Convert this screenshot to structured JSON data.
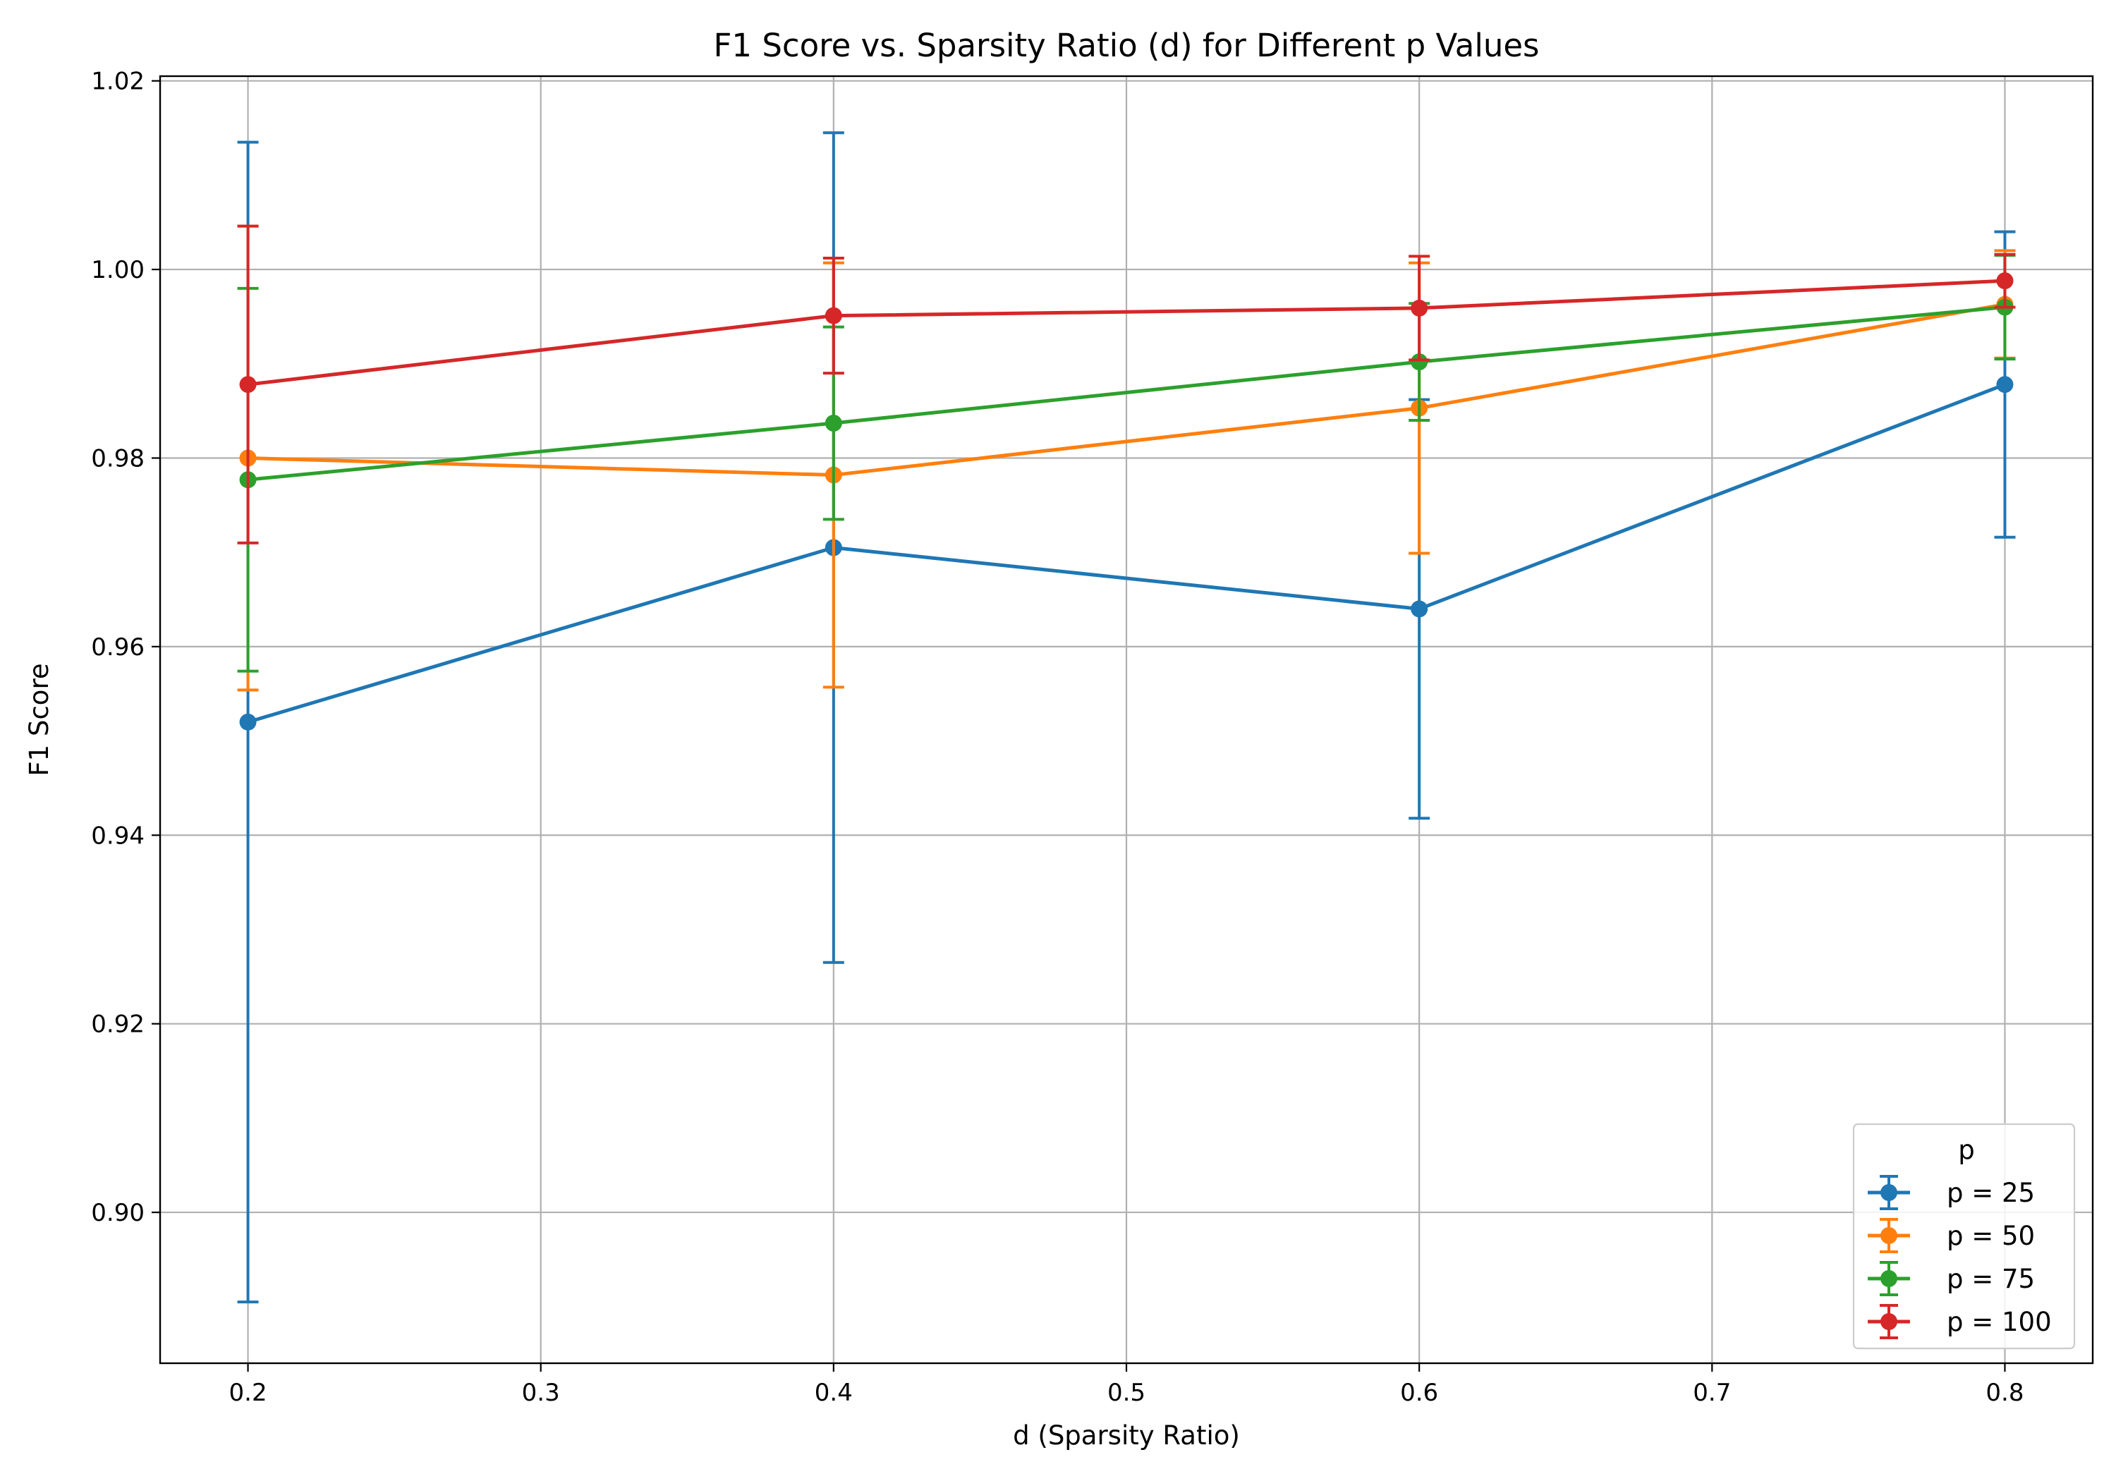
{
  "chart_data": {
    "type": "line",
    "title": "F1 Score vs. Sparsity Ratio (d) for Different p Values",
    "xlabel": "d (Sparsity Ratio)",
    "ylabel": "F1 Score",
    "xlim": [
      0.17,
      0.83
    ],
    "ylim": [
      0.884,
      1.0205
    ],
    "xticks": [
      0.2,
      0.3,
      0.4,
      0.5,
      0.6,
      0.7,
      0.8
    ],
    "xtick_labels": [
      "0.2",
      "0.3",
      "0.4",
      "0.5",
      "0.6",
      "0.7",
      "0.8"
    ],
    "yticks": [
      0.9,
      0.92,
      0.94,
      0.96,
      0.98,
      1.0,
      1.02
    ],
    "ytick_labels": [
      "0.90",
      "0.92",
      "0.94",
      "0.96",
      "0.98",
      "1.00",
      "1.02"
    ],
    "grid": true,
    "legend": {
      "title": "p",
      "location": "lower right"
    },
    "x": [
      0.2,
      0.4,
      0.6,
      0.8
    ],
    "series": [
      {
        "name": "p = 25",
        "color": "#1f77b4",
        "values": [
          0.952,
          0.9705,
          0.964,
          0.9878
        ],
        "errors": [
          0.0615,
          0.044,
          0.0222,
          0.0162
        ]
      },
      {
        "name": "p = 50",
        "color": "#ff7f0e",
        "values": [
          0.98,
          0.9782,
          0.9853,
          0.9963
        ],
        "errors": [
          0.0246,
          0.0225,
          0.0154,
          0.0057
        ]
      },
      {
        "name": "p = 75",
        "color": "#2ca02c",
        "values": [
          0.9777,
          0.9837,
          0.9902,
          0.996
        ],
        "errors": [
          0.0203,
          0.0102,
          0.0062,
          0.0055
        ]
      },
      {
        "name": "p = 100",
        "color": "#d62728",
        "values": [
          0.9878,
          0.9951,
          0.9959,
          0.9988
        ],
        "errors": [
          0.0168,
          0.0061,
          0.0055,
          0.0028
        ]
      }
    ]
  }
}
